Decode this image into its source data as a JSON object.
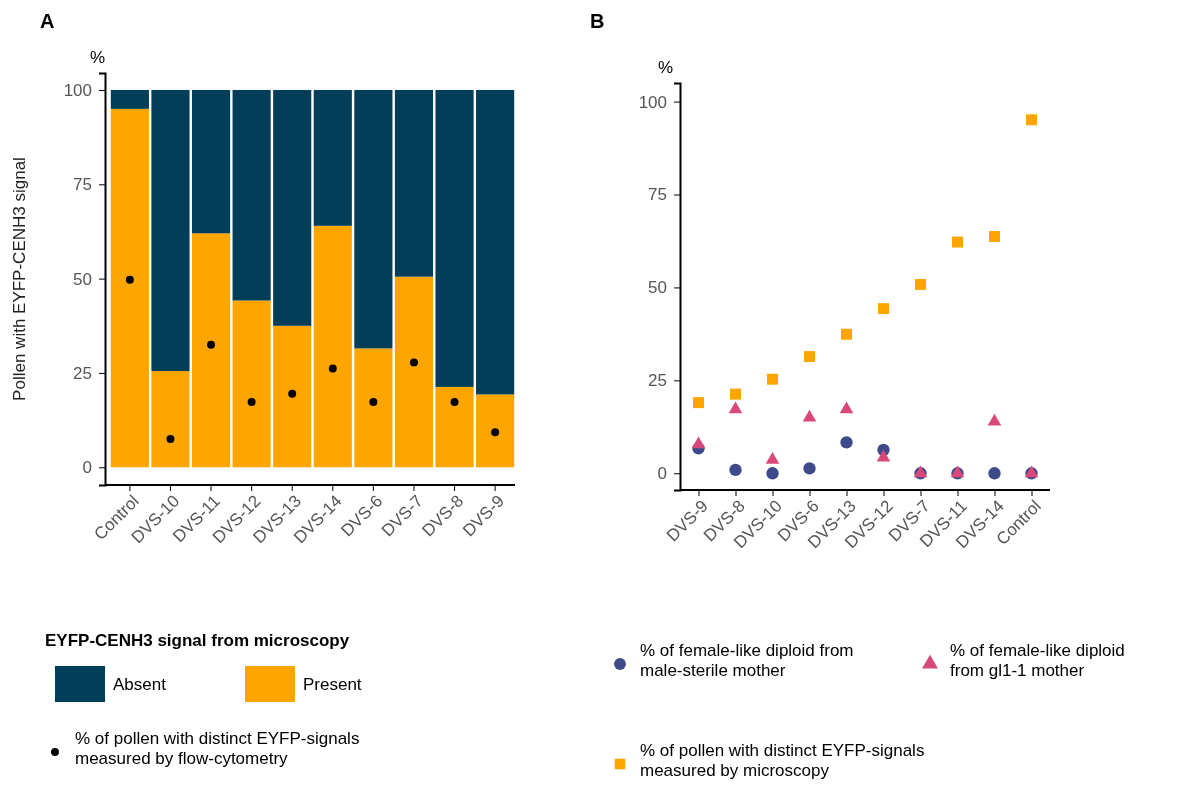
{
  "chart_data": [
    {
      "type": "bar",
      "title": "A",
      "ylabel": "Pollen with EYFP-CENH3 signal",
      "annotations": [
        "%"
      ],
      "stacked": true,
      "legend": "bottom",
      "legend_title": "EYFP-CENH3 signal from microscopy",
      "categories": [
        "Control",
        "DVS-10",
        "DVS-11",
        "DVS-12",
        "DVS-13",
        "DVS-14",
        "DVS-6",
        "DVS-7",
        "DVS-8",
        "DVS-9"
      ],
      "ylim": [
        -4.7,
        104.5
      ],
      "yticks": [
        0,
        25,
        50,
        75,
        100
      ],
      "grid": false,
      "series": [
        {
          "name": "Present",
          "color": "#ffa500",
          "values": [
            95,
            25.5,
            62,
            44.2,
            37.5,
            64,
            31.5,
            50.5,
            21.3,
            19.3
          ]
        },
        {
          "name": "Absent",
          "color": "#023e58",
          "values": [
            5,
            74.5,
            38,
            55.8,
            62.5,
            36,
            68.5,
            49.5,
            78.7,
            80.7
          ]
        },
        {
          "name": "% of pollen with distinct EYFP-signals measured by flow-cytometry",
          "type": "scatter",
          "marker": "circle",
          "color": "#000000",
          "values": [
            49.7,
            7.5,
            32.5,
            17.3,
            19.5,
            26.2,
            17.3,
            27.8,
            17.3,
            9.3
          ]
        }
      ]
    },
    {
      "type": "scatter",
      "title": "B",
      "ylabel": "%",
      "legend": "bottom",
      "categories": [
        "DVS-9",
        "DVS-8",
        "DVS-10",
        "DVS-6",
        "DVS-13",
        "DVS-12",
        "DVS-7",
        "DVS-11",
        "DVS-14",
        "Control"
      ],
      "ylim": [
        -4.5,
        105
      ],
      "yticks": [
        0,
        25,
        50,
        75,
        100
      ],
      "grid": false,
      "series": [
        {
          "name": "% of female-like diploid from male-sterile mother",
          "marker": "circle",
          "color": "#3f4a8a",
          "values": [
            6.7,
            0.9,
            0,
            1.3,
            8.3,
            6.3,
            0,
            0,
            0,
            0
          ]
        },
        {
          "name": "% of female-like diploid from gl1-1 mother",
          "marker": "triangle",
          "color": "#d9487a",
          "values": [
            7.8,
            17.2,
            3.6,
            15,
            17.2,
            4.2,
            0,
            0,
            13.9,
            0
          ]
        },
        {
          "name": "% of pollen with distinct EYFP-signals measured by microscopy",
          "marker": "square",
          "color": "#ffa500",
          "values": [
            19,
            21.3,
            25.3,
            31.4,
            37.4,
            44.3,
            50.8,
            62.2,
            63.7,
            95.1
          ]
        }
      ]
    }
  ]
}
